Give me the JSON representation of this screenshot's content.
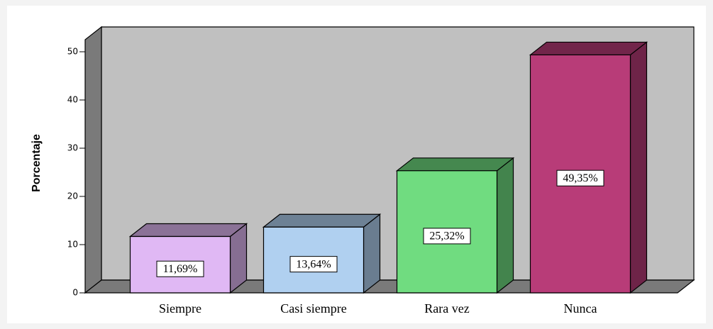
{
  "chart_data": {
    "type": "bar",
    "y_label": "Porcentaje",
    "categories": [
      "Siempre",
      "Casi siempre",
      "Rara vez",
      "Nunca"
    ],
    "values": [
      11.69,
      13.64,
      25.32,
      49.35
    ],
    "value_labels": [
      "11,69%",
      "13,64%",
      "25,32%",
      "49,35%"
    ],
    "colors": [
      "#e0b8f4",
      "#b0d0f0",
      "#70dc80",
      "#b83c78"
    ],
    "ylim": [
      0,
      52.5
    ],
    "yticks": [
      0,
      10,
      20,
      30,
      40,
      50
    ]
  }
}
